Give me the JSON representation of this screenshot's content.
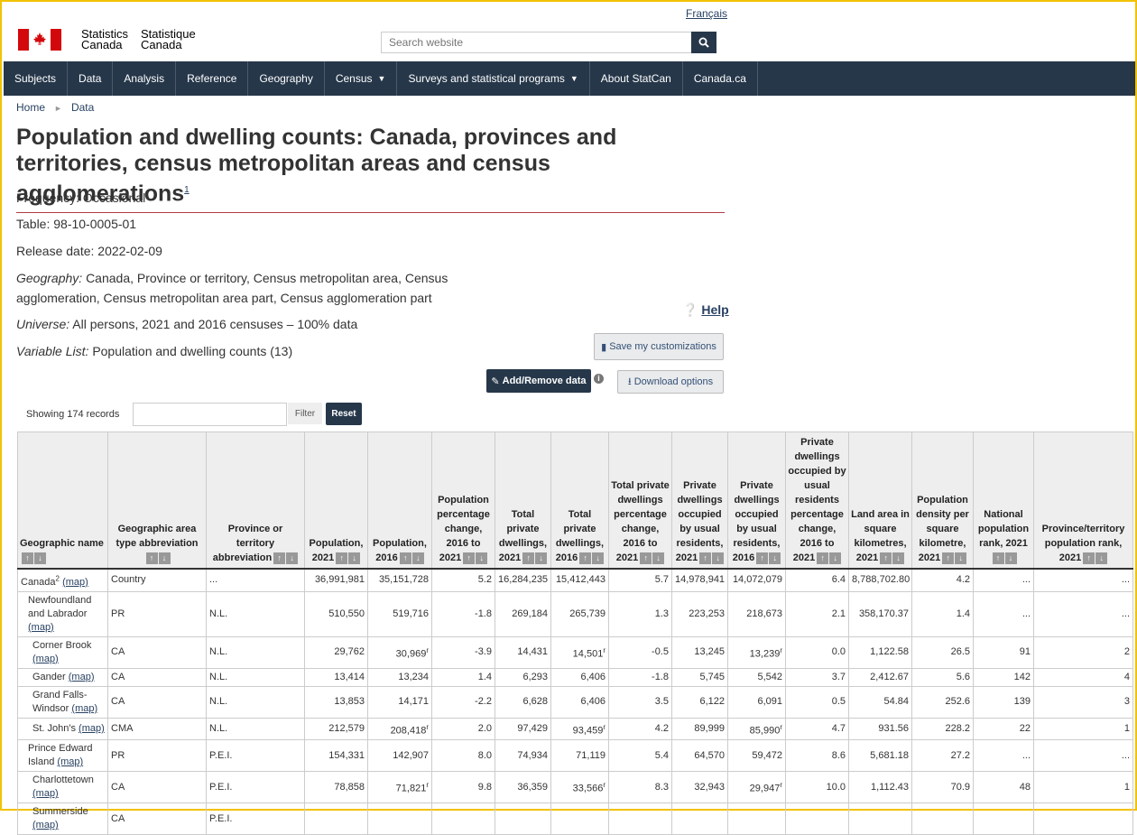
{
  "header": {
    "lang_link": "Français",
    "brand_en_1": "Statistics",
    "brand_en_2": "Canada",
    "brand_fr_1": "Statistique",
    "brand_fr_2": "Canada",
    "search_placeholder": "Search website"
  },
  "nav": [
    "Subjects",
    "Data",
    "Analysis",
    "Reference",
    "Geography",
    "Census",
    "Surveys and statistical programs",
    "About StatCan",
    "Canada.ca"
  ],
  "breadcrumb": [
    "Home",
    "Data"
  ],
  "page": {
    "title": "Population and dwelling counts: Canada, provinces and territories, census metropolitan areas and census agglomerations",
    "title_footnote": "1",
    "frequency": "Frequency: Occasional",
    "table": "Table: 98-10-0005-01",
    "release": "Release date: 2022-02-09",
    "geography_label": "Geography:",
    "geography_value": "Canada, Province or territory, Census metropolitan area, Census agglomeration, Census metropolitan area part, Census agglomeration part",
    "universe_label": "Universe:",
    "universe_value": "All persons, 2021 and 2016 censuses – 100% data",
    "variable_label": "Variable List:",
    "variable_value": "Population and dwelling counts (13)"
  },
  "controls": {
    "help": "Help",
    "save": "Save my customizations",
    "add_remove": "Add/Remove data",
    "download": "Download options",
    "showing": "Showing 174 records",
    "filter": "Filter",
    "reset": "Reset"
  },
  "table": {
    "headers": [
      "Geographic name",
      "Geographic area type abbreviation",
      "Province or territory abbreviation",
      "Population, 2021",
      "Population, 2016",
      "Population percentage change, 2016 to 2021",
      "Total private dwellings, 2021",
      "Total private dwellings, 2016",
      "Total private dwellings percentage change, 2016 to 2021",
      "Private dwellings occupied by usual residents, 2021",
      "Private dwellings occupied by usual residents, 2016",
      "Private dwellings occupied by usual residents percentage change, 2016 to 2021",
      "Land area in square kilometres, 2021",
      "Population density per square kilometre, 2021",
      "National population rank, 2021",
      "Province/territory population rank, 2021"
    ],
    "map_label": "(map)",
    "rows": [
      {
        "name": "Canada",
        "foot": "2",
        "indent": 0,
        "type": "Country",
        "prov": "...",
        "v": [
          "36,991,981",
          "35,151,728",
          "5.2",
          "16,284,235",
          "15,412,443",
          "5.7",
          "14,978,941",
          "14,072,079",
          "6.4",
          "8,788,702.80",
          "4.2",
          "...",
          "..."
        ]
      },
      {
        "name": "Newfoundland and Labrador",
        "foot": "",
        "indent": 1,
        "type": "PR",
        "prov": "N.L.",
        "v": [
          "510,550",
          "519,716",
          "-1.8",
          "269,184",
          "265,739",
          "1.3",
          "223,253",
          "218,673",
          "2.1",
          "358,170.37",
          "1.4",
          "...",
          "..."
        ]
      },
      {
        "name": "Corner Brook",
        "foot": "",
        "indent": 2,
        "type": "CA",
        "prov": "N.L.",
        "v": [
          "29,762",
          "30,969r",
          "-3.9",
          "14,431",
          "14,501r",
          "-0.5",
          "13,245",
          "13,239r",
          "0.0",
          "1,122.58",
          "26.5",
          "91",
          "2"
        ]
      },
      {
        "name": "Gander",
        "foot": "",
        "indent": 2,
        "type": "CA",
        "prov": "N.L.",
        "v": [
          "13,414",
          "13,234",
          "1.4",
          "6,293",
          "6,406",
          "-1.8",
          "5,745",
          "5,542",
          "3.7",
          "2,412.67",
          "5.6",
          "142",
          "4"
        ]
      },
      {
        "name": "Grand Falls-Windsor",
        "foot": "",
        "indent": 2,
        "type": "CA",
        "prov": "N.L.",
        "v": [
          "13,853",
          "14,171",
          "-2.2",
          "6,628",
          "6,406",
          "3.5",
          "6,122",
          "6,091",
          "0.5",
          "54.84",
          "252.6",
          "139",
          "3"
        ]
      },
      {
        "name": "St. John's",
        "foot": "",
        "indent": 2,
        "type": "CMA",
        "prov": "N.L.",
        "v": [
          "212,579",
          "208,418r",
          "2.0",
          "97,429",
          "93,459r",
          "4.2",
          "89,999",
          "85,990r",
          "4.7",
          "931.56",
          "228.2",
          "22",
          "1"
        ]
      },
      {
        "name": "Prince Edward Island",
        "foot": "",
        "indent": 1,
        "type": "PR",
        "prov": "P.E.I.",
        "v": [
          "154,331",
          "142,907",
          "8.0",
          "74,934",
          "71,119",
          "5.4",
          "64,570",
          "59,472",
          "8.6",
          "5,681.18",
          "27.2",
          "...",
          "..."
        ]
      },
      {
        "name": "Charlottetown",
        "foot": "",
        "indent": 2,
        "type": "CA",
        "prov": "P.E.I.",
        "v": [
          "78,858",
          "71,821r",
          "9.8",
          "36,359",
          "33,566r",
          "8.3",
          "32,943",
          "29,947r",
          "10.0",
          "1,112.43",
          "70.9",
          "48",
          "1"
        ]
      },
      {
        "name": "Summerside",
        "foot": "",
        "indent": 2,
        "type": "CA",
        "prov": "P.E.I.",
        "v": [
          "",
          "",
          "",
          "",
          "",
          "",
          "",
          "",
          "",
          "",
          "",
          "",
          ""
        ]
      }
    ]
  }
}
